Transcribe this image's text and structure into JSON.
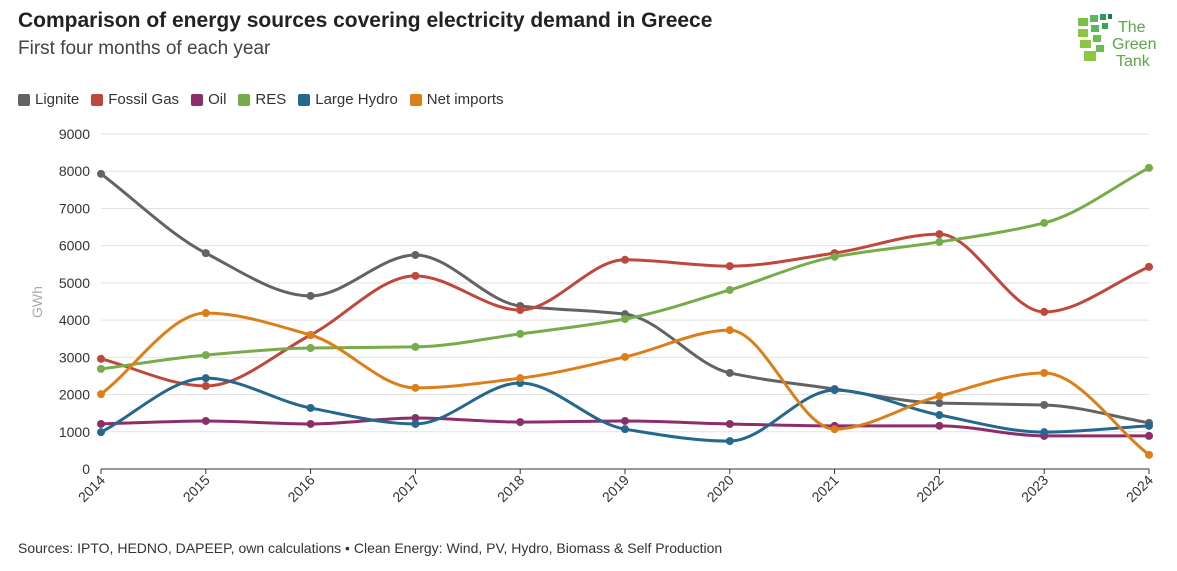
{
  "header": {
    "title": "Comparison of energy sources covering electricity demand in Greece",
    "subtitle": "First four months of each year"
  },
  "logo": {
    "text": "The Green Tank"
  },
  "footer": {
    "source": "Sources: IPTO, HEDNO, DAPEEP, own calculations • Clean Energy: Wind, PV, Hydro, Biomass & Self Production"
  },
  "chart_data": {
    "type": "line",
    "title": "Comparison of energy sources covering electricity demand in Greece",
    "subtitle": "First four months of each year",
    "ylabel": "GWh",
    "xlabel": "",
    "ylim": [
      0,
      9000
    ],
    "yticks": [
      "0",
      "1000",
      "2000",
      "3000",
      "4000",
      "5000",
      "6000",
      "7000",
      "8000",
      "9000"
    ],
    "x": [
      "2014",
      "2015",
      "2016",
      "2017",
      "2018",
      "2019",
      "2020",
      "2021",
      "2022",
      "2023",
      "2024"
    ],
    "grid": true,
    "legend": "top-left",
    "series": [
      {
        "name": "Lignite",
        "color": "#636363",
        "values": [
          7930,
          5800,
          4650,
          5750,
          4380,
          4160,
          2580,
          2150,
          1770,
          1720,
          1240
        ]
      },
      {
        "name": "Fossil Gas",
        "color": "#c0473b",
        "values": [
          2960,
          2230,
          3600,
          5190,
          4270,
          5620,
          5450,
          5800,
          6310,
          4220,
          5430
        ]
      },
      {
        "name": "Oil",
        "color": "#8c2e6a",
        "values": [
          1210,
          1290,
          1210,
          1370,
          1260,
          1290,
          1210,
          1160,
          1160,
          890,
          890
        ]
      },
      {
        "name": "RES",
        "color": "#76ac4a",
        "values": [
          2690,
          3060,
          3250,
          3280,
          3630,
          4030,
          4810,
          5700,
          6100,
          6610,
          8090
        ]
      },
      {
        "name": "Large Hydro",
        "color": "#24678f",
        "values": [
          990,
          2440,
          1640,
          1210,
          2310,
          1070,
          750,
          2120,
          1450,
          990,
          1160
        ]
      },
      {
        "name": "Net imports",
        "color": "#dd7e18",
        "values": [
          2010,
          4190,
          3600,
          2180,
          2440,
          3010,
          3730,
          1070,
          1960,
          2580,
          380
        ]
      }
    ]
  }
}
